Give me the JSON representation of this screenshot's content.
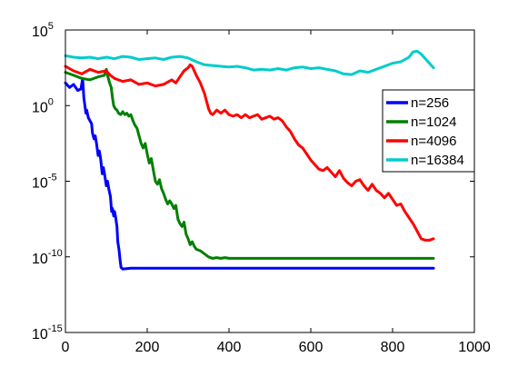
{
  "chart_data": {
    "type": "line",
    "title": "",
    "xlabel": "",
    "ylabel": "",
    "xlim": [
      0,
      1000
    ],
    "ylim": [
      -15,
      5
    ],
    "y_scale": "log10",
    "grid": false,
    "legend_position": "right",
    "x_ticks": [
      "0",
      "200",
      "400",
      "600",
      "800",
      "1000"
    ],
    "x_tick_values": [
      0,
      200,
      400,
      600,
      800,
      1000
    ],
    "y_ticks": [
      {
        "base": "10",
        "exp": "-15",
        "value": -15
      },
      {
        "base": "10",
        "exp": "-10",
        "value": -10
      },
      {
        "base": "10",
        "exp": "-5",
        "value": -5
      },
      {
        "base": "10",
        "exp": "0",
        "value": 0
      },
      {
        "base": "10",
        "exp": "5",
        "value": 5
      }
    ],
    "series": [
      {
        "name": "n=256",
        "color": "#0000ff",
        "points": [
          [
            0,
            1.5
          ],
          [
            10,
            1.2
          ],
          [
            20,
            1.4
          ],
          [
            30,
            1.0
          ],
          [
            38,
            1.1
          ],
          [
            42,
            1.8
          ],
          [
            45,
            0.5
          ],
          [
            50,
            -0.5
          ],
          [
            52,
            -0.3
          ],
          [
            56,
            -0.8
          ],
          [
            60,
            -1.0
          ],
          [
            64,
            -1.2
          ],
          [
            66,
            -1.8
          ],
          [
            70,
            -2.2
          ],
          [
            73,
            -2.0
          ],
          [
            76,
            -2.5
          ],
          [
            80,
            -3.3
          ],
          [
            83,
            -3.0
          ],
          [
            86,
            -3.5
          ],
          [
            88,
            -4.0
          ],
          [
            90,
            -4.5
          ],
          [
            93,
            -4.1
          ],
          [
            96,
            -4.6
          ],
          [
            100,
            -5.3
          ],
          [
            103,
            -5.0
          ],
          [
            106,
            -5.5
          ],
          [
            110,
            -6.0
          ],
          [
            113,
            -7.0
          ],
          [
            115,
            -6.8
          ],
          [
            118,
            -7.3
          ],
          [
            120,
            -7.0
          ],
          [
            123,
            -7.4
          ],
          [
            126,
            -8.0
          ],
          [
            128,
            -9.0
          ],
          [
            131,
            -9.5
          ],
          [
            134,
            -10.3
          ],
          [
            136,
            -10.7
          ],
          [
            140,
            -10.8
          ],
          [
            160,
            -10.75
          ],
          [
            200,
            -10.75
          ],
          [
            400,
            -10.75
          ],
          [
            600,
            -10.75
          ],
          [
            800,
            -10.75
          ],
          [
            900,
            -10.75
          ]
        ]
      },
      {
        "name": "n=1024",
        "color": "#008000",
        "points": [
          [
            0,
            2.2
          ],
          [
            20,
            2.0
          ],
          [
            40,
            1.8
          ],
          [
            60,
            1.7
          ],
          [
            80,
            1.9
          ],
          [
            95,
            2.0
          ],
          [
            100,
            2.4
          ],
          [
            103,
            2.0
          ],
          [
            108,
            1.5
          ],
          [
            112,
            1.2
          ],
          [
            115,
            0.5
          ],
          [
            118,
            0.0
          ],
          [
            122,
            -0.2
          ],
          [
            126,
            -0.3
          ],
          [
            130,
            -0.5
          ],
          [
            135,
            -0.6
          ],
          [
            140,
            -0.4
          ],
          [
            145,
            -0.6
          ],
          [
            150,
            -0.5
          ],
          [
            155,
            -0.7
          ],
          [
            160,
            -0.6
          ],
          [
            165,
            -1.0
          ],
          [
            170,
            -1.3
          ],
          [
            175,
            -1.5
          ],
          [
            180,
            -2.0
          ],
          [
            185,
            -2.5
          ],
          [
            190,
            -2.8
          ],
          [
            195,
            -2.5
          ],
          [
            200,
            -3.2
          ],
          [
            205,
            -3.8
          ],
          [
            210,
            -3.5
          ],
          [
            215,
            -4.3
          ],
          [
            220,
            -5.0
          ],
          [
            225,
            -5.2
          ],
          [
            230,
            -4.9
          ],
          [
            235,
            -5.5
          ],
          [
            240,
            -5.8
          ],
          [
            245,
            -6.2
          ],
          [
            250,
            -6.5
          ],
          [
            255,
            -6.3
          ],
          [
            260,
            -6.5
          ],
          [
            265,
            -6.8
          ],
          [
            270,
            -6.6
          ],
          [
            275,
            -7.5
          ],
          [
            280,
            -7.8
          ],
          [
            285,
            -8.0
          ],
          [
            290,
            -7.7
          ],
          [
            295,
            -8.5
          ],
          [
            300,
            -8.8
          ],
          [
            305,
            -9.2
          ],
          [
            310,
            -9.0
          ],
          [
            315,
            -9.3
          ],
          [
            320,
            -9.5
          ],
          [
            330,
            -9.6
          ],
          [
            340,
            -9.8
          ],
          [
            350,
            -10.0
          ],
          [
            360,
            -10.1
          ],
          [
            370,
            -10.05
          ],
          [
            380,
            -10.1
          ],
          [
            390,
            -10.05
          ],
          [
            400,
            -10.1
          ],
          [
            500,
            -10.1
          ],
          [
            600,
            -10.1
          ],
          [
            700,
            -10.1
          ],
          [
            800,
            -10.1
          ],
          [
            900,
            -10.1
          ]
        ]
      },
      {
        "name": "n=4096",
        "color": "#ff0000",
        "points": [
          [
            0,
            2.6
          ],
          [
            20,
            2.3
          ],
          [
            40,
            2.1
          ],
          [
            60,
            2.4
          ],
          [
            80,
            2.2
          ],
          [
            100,
            2.3
          ],
          [
            110,
            2.0
          ],
          [
            120,
            1.8
          ],
          [
            140,
            1.6
          ],
          [
            160,
            1.7
          ],
          [
            180,
            1.4
          ],
          [
            200,
            1.5
          ],
          [
            220,
            1.3
          ],
          [
            240,
            1.4
          ],
          [
            260,
            1.7
          ],
          [
            270,
            1.5
          ],
          [
            280,
            1.9
          ],
          [
            290,
            2.3
          ],
          [
            300,
            2.5
          ],
          [
            305,
            2.7
          ],
          [
            310,
            2.6
          ],
          [
            320,
            2.0
          ],
          [
            330,
            1.5
          ],
          [
            340,
            0.8
          ],
          [
            350,
            -0.2
          ],
          [
            355,
            -0.5
          ],
          [
            360,
            -0.6
          ],
          [
            370,
            -0.3
          ],
          [
            380,
            -0.5
          ],
          [
            390,
            -0.3
          ],
          [
            400,
            -0.6
          ],
          [
            410,
            -0.7
          ],
          [
            420,
            -0.6
          ],
          [
            430,
            -0.8
          ],
          [
            440,
            -0.6
          ],
          [
            450,
            -0.8
          ],
          [
            460,
            -0.7
          ],
          [
            470,
            -0.6
          ],
          [
            480,
            -0.9
          ],
          [
            490,
            -0.8
          ],
          [
            500,
            -0.7
          ],
          [
            510,
            -0.9
          ],
          [
            520,
            -0.8
          ],
          [
            530,
            -1.0
          ],
          [
            540,
            -1.4
          ],
          [
            550,
            -1.7
          ],
          [
            560,
            -2.2
          ],
          [
            570,
            -2.6
          ],
          [
            580,
            -2.8
          ],
          [
            590,
            -3.2
          ],
          [
            600,
            -3.6
          ],
          [
            610,
            -3.9
          ],
          [
            620,
            -4.2
          ],
          [
            630,
            -4.3
          ],
          [
            640,
            -4.1
          ],
          [
            650,
            -4.4
          ],
          [
            660,
            -4.7
          ],
          [
            670,
            -4.3
          ],
          [
            680,
            -4.8
          ],
          [
            690,
            -5.1
          ],
          [
            700,
            -5.3
          ],
          [
            710,
            -5.0
          ],
          [
            720,
            -4.9
          ],
          [
            730,
            -5.3
          ],
          [
            740,
            -5.6
          ],
          [
            750,
            -5.2
          ],
          [
            760,
            -5.6
          ],
          [
            770,
            -5.8
          ],
          [
            780,
            -6.1
          ],
          [
            790,
            -5.8
          ],
          [
            800,
            -6.2
          ],
          [
            810,
            -6.6
          ],
          [
            820,
            -6.5
          ],
          [
            830,
            -7.0
          ],
          [
            840,
            -7.4
          ],
          [
            850,
            -7.8
          ],
          [
            860,
            -8.3
          ],
          [
            870,
            -8.8
          ],
          [
            880,
            -8.9
          ],
          [
            890,
            -8.9
          ],
          [
            900,
            -8.8
          ]
        ]
      },
      {
        "name": "n=16384",
        "color": "#00cccc",
        "points": [
          [
            0,
            3.3
          ],
          [
            20,
            3.2
          ],
          [
            40,
            3.15
          ],
          [
            60,
            3.2
          ],
          [
            80,
            3.1
          ],
          [
            100,
            3.2
          ],
          [
            120,
            3.1
          ],
          [
            140,
            3.25
          ],
          [
            160,
            3.2
          ],
          [
            180,
            3.05
          ],
          [
            200,
            3.1
          ],
          [
            220,
            3.15
          ],
          [
            240,
            3.05
          ],
          [
            260,
            3.2
          ],
          [
            280,
            3.25
          ],
          [
            300,
            3.15
          ],
          [
            320,
            2.9
          ],
          [
            340,
            2.7
          ],
          [
            360,
            2.65
          ],
          [
            380,
            2.6
          ],
          [
            400,
            2.55
          ],
          [
            420,
            2.6
          ],
          [
            440,
            2.5
          ],
          [
            460,
            2.35
          ],
          [
            480,
            2.4
          ],
          [
            500,
            2.35
          ],
          [
            520,
            2.45
          ],
          [
            540,
            2.35
          ],
          [
            560,
            2.5
          ],
          [
            580,
            2.55
          ],
          [
            600,
            2.45
          ],
          [
            620,
            2.5
          ],
          [
            640,
            2.4
          ],
          [
            660,
            2.3
          ],
          [
            680,
            2.1
          ],
          [
            700,
            2.05
          ],
          [
            720,
            2.3
          ],
          [
            740,
            2.2
          ],
          [
            760,
            2.4
          ],
          [
            780,
            2.6
          ],
          [
            800,
            2.8
          ],
          [
            820,
            2.9
          ],
          [
            840,
            3.2
          ],
          [
            850,
            3.55
          ],
          [
            860,
            3.6
          ],
          [
            870,
            3.4
          ],
          [
            880,
            3.1
          ],
          [
            890,
            2.8
          ],
          [
            900,
            2.5
          ]
        ]
      }
    ]
  }
}
